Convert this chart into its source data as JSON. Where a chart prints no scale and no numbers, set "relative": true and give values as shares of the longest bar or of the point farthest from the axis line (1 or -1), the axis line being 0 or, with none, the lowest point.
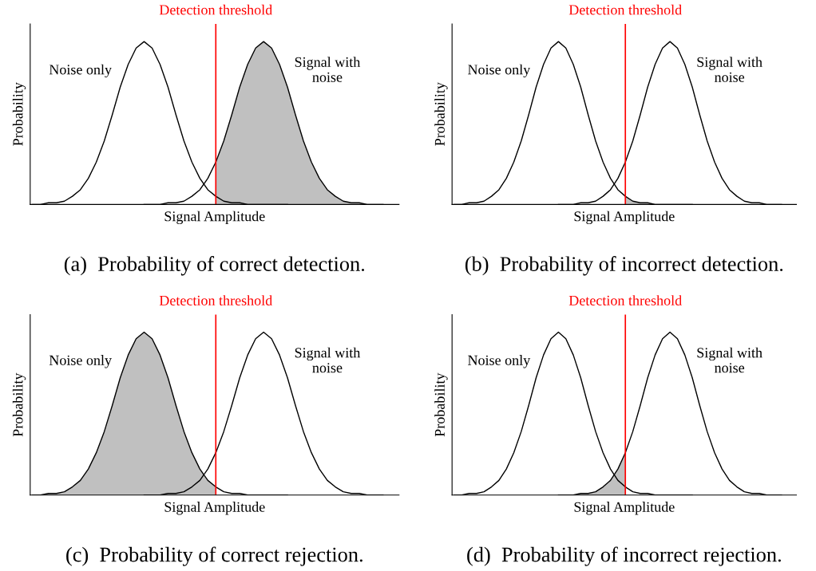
{
  "chart_data": [
    {
      "type": "line",
      "title": "(a)  Probability of correct detection.",
      "xlabel": "Signal Amplitude",
      "ylabel": "Probability",
      "relative": true,
      "annotations": [
        "Detection threshold"
      ],
      "categories": [
        null,
        null,
        null,
        null,
        null,
        null,
        null,
        null,
        null,
        null,
        null,
        null,
        null,
        null,
        null,
        null,
        null,
        null,
        null,
        null,
        null,
        null,
        null,
        null,
        null,
        null,
        null,
        null,
        null,
        null,
        null,
        null,
        null,
        null,
        null,
        null,
        null,
        null,
        null,
        null,
        null,
        null,
        null,
        null,
        null,
        null,
        null
      ],
      "series": [
        {
          "type": "area",
          "color": "#c0c0c0",
          "values": [
            null,
            null,
            null,
            null,
            null,
            null,
            null,
            null,
            null,
            null,
            null,
            null,
            null,
            null,
            null,
            null,
            null,
            null,
            null,
            null,
            null,
            null,
            null,
            0.26,
            0.39,
            0.55,
            0.72,
            0.86,
            0.96,
            1,
            0.96,
            0.86,
            0.72,
            0.55,
            0.39,
            0.26,
            0.16,
            0.09,
            0.05,
            0.02,
            0.01,
            0.01,
            0,
            0,
            0,
            null,
            null
          ]
        },
        {
          "name": "Noise only",
          "color": "#000000",
          "values": [
            0,
            0,
            0.01,
            0.01,
            0.02,
            0.05,
            0.09,
            0.16,
            0.26,
            0.39,
            0.55,
            0.72,
            0.86,
            0.96,
            1,
            0.96,
            0.86,
            0.72,
            0.55,
            0.39,
            0.26,
            0.16,
            0.09,
            0.05,
            0.02,
            0.01,
            0.01,
            0,
            0,
            0,
            0,
            0,
            0,
            null,
            null,
            null,
            null,
            null,
            null,
            null,
            null,
            null,
            null,
            null,
            null,
            null,
            null
          ]
        },
        {
          "name": "Signal with\nnoise",
          "color": "#000000",
          "values": [
            null,
            null,
            null,
            null,
            null,
            null,
            null,
            null,
            null,
            null,
            null,
            null,
            null,
            null,
            0,
            0,
            0,
            0.01,
            0.01,
            0.02,
            0.05,
            0.09,
            0.16,
            0.26,
            0.39,
            0.55,
            0.72,
            0.86,
            0.96,
            1,
            0.96,
            0.86,
            0.72,
            0.55,
            0.39,
            0.26,
            0.16,
            0.09,
            0.05,
            0.02,
            0.01,
            0.01,
            0,
            0,
            0,
            null,
            null
          ]
        }
      ]
    },
    {
      "type": "line",
      "title": "(b)  Probability of incorrect detection.",
      "xlabel": "Signal Amplitude",
      "ylabel": "Probability",
      "relative": true,
      "annotations": [
        "Detection threshold"
      ],
      "categories": [
        null,
        null,
        null,
        null,
        null,
        null,
        null,
        null,
        null,
        null,
        null,
        null,
        null,
        null,
        null,
        null,
        null,
        null,
        null,
        null,
        null,
        null,
        null,
        null,
        null,
        null,
        null,
        null,
        null,
        null,
        null,
        null,
        null,
        null,
        null,
        null,
        null,
        null,
        null,
        null,
        null,
        null,
        null,
        null,
        null,
        null,
        null
      ],
      "series": [
        {
          "type": "area",
          "color": "#c0c0c0",
          "values": [
            null,
            null,
            null,
            null,
            null,
            null,
            null,
            null,
            null,
            null,
            null,
            null,
            null,
            null,
            null,
            null,
            null,
            null,
            null,
            null,
            null,
            null,
            null,
            0.05,
            0.02,
            0.01,
            0.01,
            0,
            0,
            0,
            0,
            0,
            0,
            null,
            null,
            null,
            null,
            null,
            null,
            null,
            null,
            null,
            null,
            null,
            null,
            null,
            null
          ]
        },
        {
          "name": "Noise only",
          "color": "#000000",
          "values": [
            0,
            0,
            0.01,
            0.01,
            0.02,
            0.05,
            0.09,
            0.16,
            0.26,
            0.39,
            0.55,
            0.72,
            0.86,
            0.96,
            1,
            0.96,
            0.86,
            0.72,
            0.55,
            0.39,
            0.26,
            0.16,
            0.09,
            0.05,
            0.02,
            0.01,
            0.01,
            0,
            0,
            0,
            0,
            0,
            0,
            null,
            null,
            null,
            null,
            null,
            null,
            null,
            null,
            null,
            null,
            null,
            null,
            null,
            null
          ]
        },
        {
          "name": "Signal with\nnoise",
          "color": "#000000",
          "values": [
            null,
            null,
            null,
            null,
            null,
            null,
            null,
            null,
            null,
            null,
            null,
            null,
            null,
            null,
            0,
            0,
            0,
            0.01,
            0.01,
            0.02,
            0.05,
            0.09,
            0.16,
            0.26,
            0.39,
            0.55,
            0.72,
            0.86,
            0.96,
            1,
            0.96,
            0.86,
            0.72,
            0.55,
            0.39,
            0.26,
            0.16,
            0.09,
            0.05,
            0.02,
            0.01,
            0.01,
            0,
            0,
            0,
            null,
            null
          ]
        }
      ]
    },
    {
      "type": "line",
      "title": "(c)  Probability of correct rejection.",
      "xlabel": "Signal Amplitude",
      "ylabel": "Probability",
      "relative": true,
      "annotations": [
        "Detection threshold"
      ],
      "categories": [
        null,
        null,
        null,
        null,
        null,
        null,
        null,
        null,
        null,
        null,
        null,
        null,
        null,
        null,
        null,
        null,
        null,
        null,
        null,
        null,
        null,
        null,
        null,
        null,
        null,
        null,
        null,
        null,
        null,
        null,
        null,
        null,
        null,
        null,
        null,
        null,
        null,
        null,
        null,
        null,
        null,
        null,
        null,
        null,
        null,
        null,
        null
      ],
      "series": [
        {
          "type": "area",
          "color": "#c0c0c0",
          "values": [
            0,
            0,
            0.01,
            0.01,
            0.02,
            0.05,
            0.09,
            0.16,
            0.26,
            0.39,
            0.55,
            0.72,
            0.86,
            0.96,
            1,
            0.96,
            0.86,
            0.72,
            0.55,
            0.39,
            0.26,
            0.16,
            0.09,
            0.05,
            null,
            null,
            null,
            null,
            null,
            null,
            null,
            null,
            null,
            null,
            null,
            null,
            null,
            null,
            null,
            null,
            null,
            null,
            null,
            null,
            null,
            null,
            null
          ]
        },
        {
          "name": "Noise only",
          "color": "#000000",
          "values": [
            0,
            0,
            0.01,
            0.01,
            0.02,
            0.05,
            0.09,
            0.16,
            0.26,
            0.39,
            0.55,
            0.72,
            0.86,
            0.96,
            1,
            0.96,
            0.86,
            0.72,
            0.55,
            0.39,
            0.26,
            0.16,
            0.09,
            0.05,
            0.02,
            0.01,
            0.01,
            0,
            0,
            0,
            0,
            0,
            0,
            null,
            null,
            null,
            null,
            null,
            null,
            null,
            null,
            null,
            null,
            null,
            null,
            null,
            null
          ]
        },
        {
          "name": "Signal with\nnoise",
          "color": "#000000",
          "values": [
            null,
            null,
            null,
            null,
            null,
            null,
            null,
            null,
            null,
            null,
            null,
            null,
            null,
            null,
            0,
            0,
            0,
            0.01,
            0.01,
            0.02,
            0.05,
            0.09,
            0.16,
            0.26,
            0.39,
            0.55,
            0.72,
            0.86,
            0.96,
            1,
            0.96,
            0.86,
            0.72,
            0.55,
            0.39,
            0.26,
            0.16,
            0.09,
            0.05,
            0.02,
            0.01,
            0.01,
            0,
            0,
            0,
            null,
            null
          ]
        }
      ]
    },
    {
      "type": "line",
      "title": "(d)  Probability of incorrect rejection.",
      "xlabel": "Signal Amplitude",
      "ylabel": "Probability",
      "relative": true,
      "annotations": [
        "Detection threshold"
      ],
      "categories": [
        null,
        null,
        null,
        null,
        null,
        null,
        null,
        null,
        null,
        null,
        null,
        null,
        null,
        null,
        null,
        null,
        null,
        null,
        null,
        null,
        null,
        null,
        null,
        null,
        null,
        null,
        null,
        null,
        null,
        null,
        null,
        null,
        null,
        null,
        null,
        null,
        null,
        null,
        null,
        null,
        null,
        null,
        null,
        null,
        null,
        null,
        null
      ],
      "series": [
        {
          "type": "area",
          "color": "#c0c0c0",
          "values": [
            null,
            null,
            null,
            null,
            null,
            null,
            null,
            null,
            null,
            null,
            null,
            null,
            null,
            null,
            0,
            0,
            0,
            0.01,
            0.01,
            0.02,
            0.05,
            0.09,
            0.16,
            0.26,
            null,
            null,
            null,
            null,
            null,
            null,
            null,
            null,
            null,
            null,
            null,
            null,
            null,
            null,
            null,
            null,
            null,
            null,
            null,
            null,
            null,
            null,
            null
          ]
        },
        {
          "name": "Noise only",
          "color": "#000000",
          "values": [
            0,
            0,
            0.01,
            0.01,
            0.02,
            0.05,
            0.09,
            0.16,
            0.26,
            0.39,
            0.55,
            0.72,
            0.86,
            0.96,
            1,
            0.96,
            0.86,
            0.72,
            0.55,
            0.39,
            0.26,
            0.16,
            0.09,
            0.05,
            0.02,
            0.01,
            0.01,
            0,
            0,
            0,
            0,
            0,
            0,
            null,
            null,
            null,
            null,
            null,
            null,
            null,
            null,
            null,
            null,
            null,
            null,
            null,
            null
          ]
        },
        {
          "name": "Signal with\nnoise",
          "color": "#000000",
          "values": [
            null,
            null,
            null,
            null,
            null,
            null,
            null,
            null,
            null,
            null,
            null,
            null,
            null,
            null,
            0,
            0,
            0,
            0.01,
            0.01,
            0.02,
            0.05,
            0.09,
            0.16,
            0.26,
            0.39,
            0.55,
            0.72,
            0.86,
            0.96,
            1,
            0.96,
            0.86,
            0.72,
            0.55,
            0.39,
            0.26,
            0.16,
            0.09,
            0.05,
            0.02,
            0.01,
            0.01,
            0,
            0,
            0,
            null,
            null
          ]
        }
      ]
    }
  ]
}
